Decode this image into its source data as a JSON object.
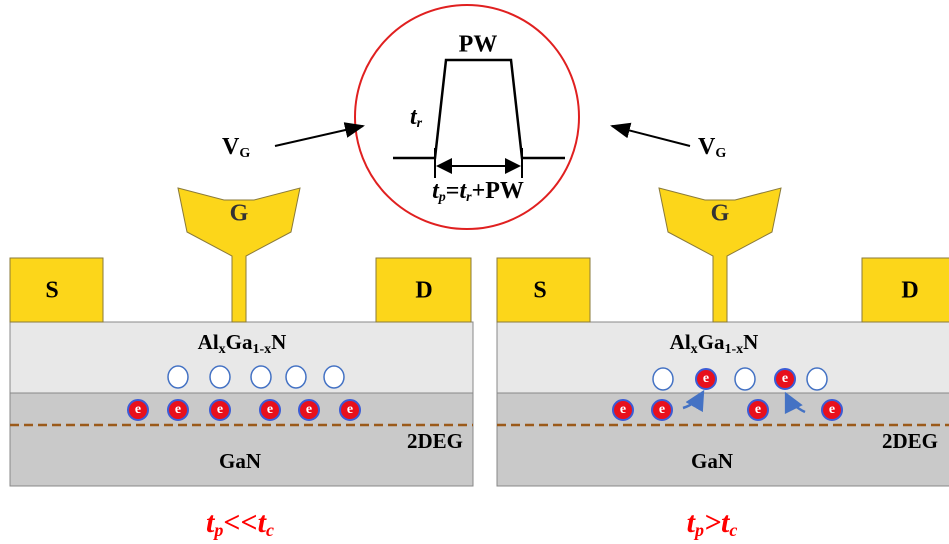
{
  "pulse": {
    "top_label": "PW",
    "rise_label": [
      "t",
      "r"
    ],
    "period_label": [
      "t",
      "p",
      "=",
      "t",
      "r",
      "+PW"
    ]
  },
  "gate_voltage": {
    "left": [
      "V",
      "G"
    ],
    "right": [
      "V",
      "G"
    ]
  },
  "devices": [
    {
      "source": "S",
      "drain": "D",
      "gate": "G",
      "barrier": [
        "Al",
        "x",
        "Ga",
        "1-x",
        "N"
      ],
      "channel": "GaN",
      "gas": "2DEG",
      "electron": "e",
      "condition": [
        "t",
        "p",
        "<<",
        "t",
        "c"
      ]
    },
    {
      "source": "S",
      "drain": "D",
      "gate": "G",
      "barrier": [
        "Al",
        "x",
        "Ga",
        "1-x",
        "N"
      ],
      "channel": "GaN",
      "gas": "2DEG",
      "electron": "e",
      "condition": [
        "t",
        "p",
        ">",
        "t",
        "c"
      ]
    }
  ]
}
